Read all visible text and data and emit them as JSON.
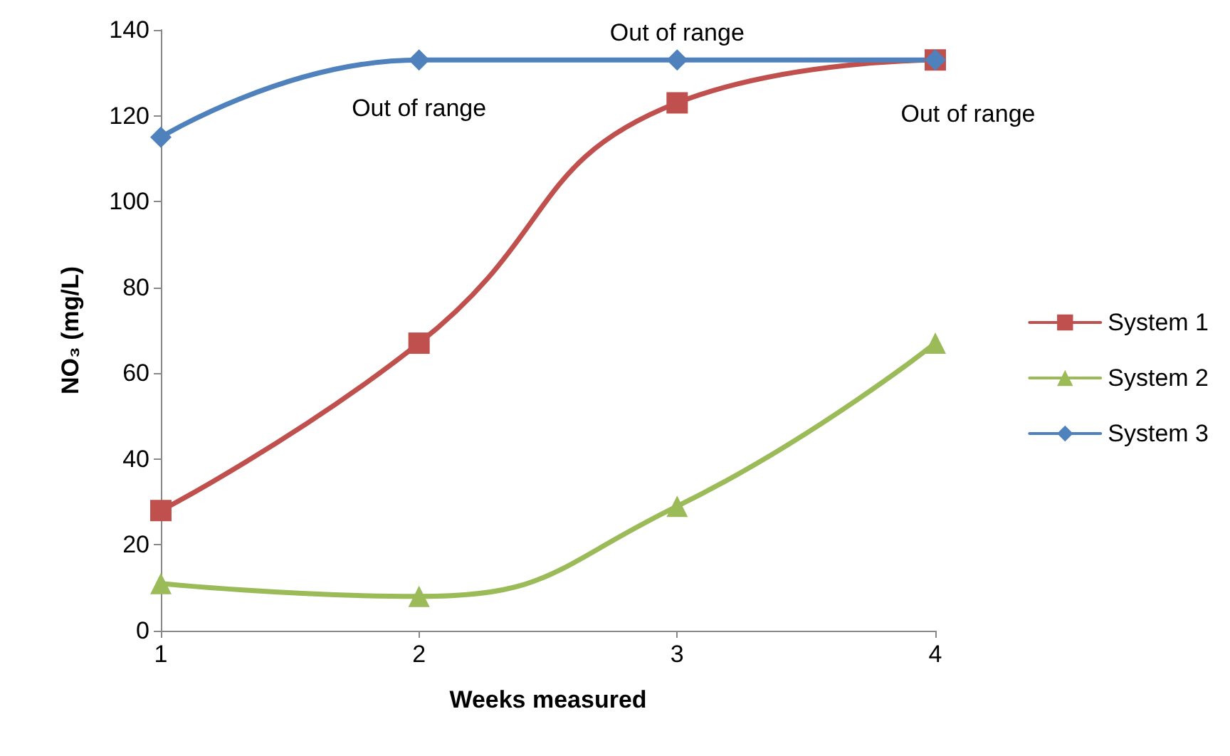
{
  "chart_data": {
    "type": "line",
    "xlabel": "Weeks measured",
    "ylabel": "NO₃ (mg/L)",
    "x": [
      1,
      2,
      3,
      4
    ],
    "xlim": [
      1,
      4
    ],
    "xticks": [
      1,
      2,
      3,
      4
    ],
    "ylim": [
      0,
      140
    ],
    "yticks": [
      0,
      20,
      40,
      60,
      80,
      100,
      120,
      140
    ],
    "series": [
      {
        "name": "System 1",
        "color": "#c0504d",
        "marker": "square",
        "values": [
          28,
          67,
          123,
          133
        ]
      },
      {
        "name": "System 2",
        "color": "#9bbb59",
        "marker": "triangle",
        "values": [
          11,
          8,
          29,
          67
        ]
      },
      {
        "name": "System 3",
        "color": "#4f81bd",
        "marker": "diamond",
        "values": [
          115,
          133,
          133,
          133
        ]
      }
    ],
    "annotations": [
      {
        "text": "Out of range",
        "x": 2,
        "y": 133
      },
      {
        "text": "Out of range",
        "x": 3,
        "y": 133
      },
      {
        "text": "Out of range",
        "x": 4,
        "y": 133
      }
    ],
    "grid": false,
    "legend": "right"
  }
}
